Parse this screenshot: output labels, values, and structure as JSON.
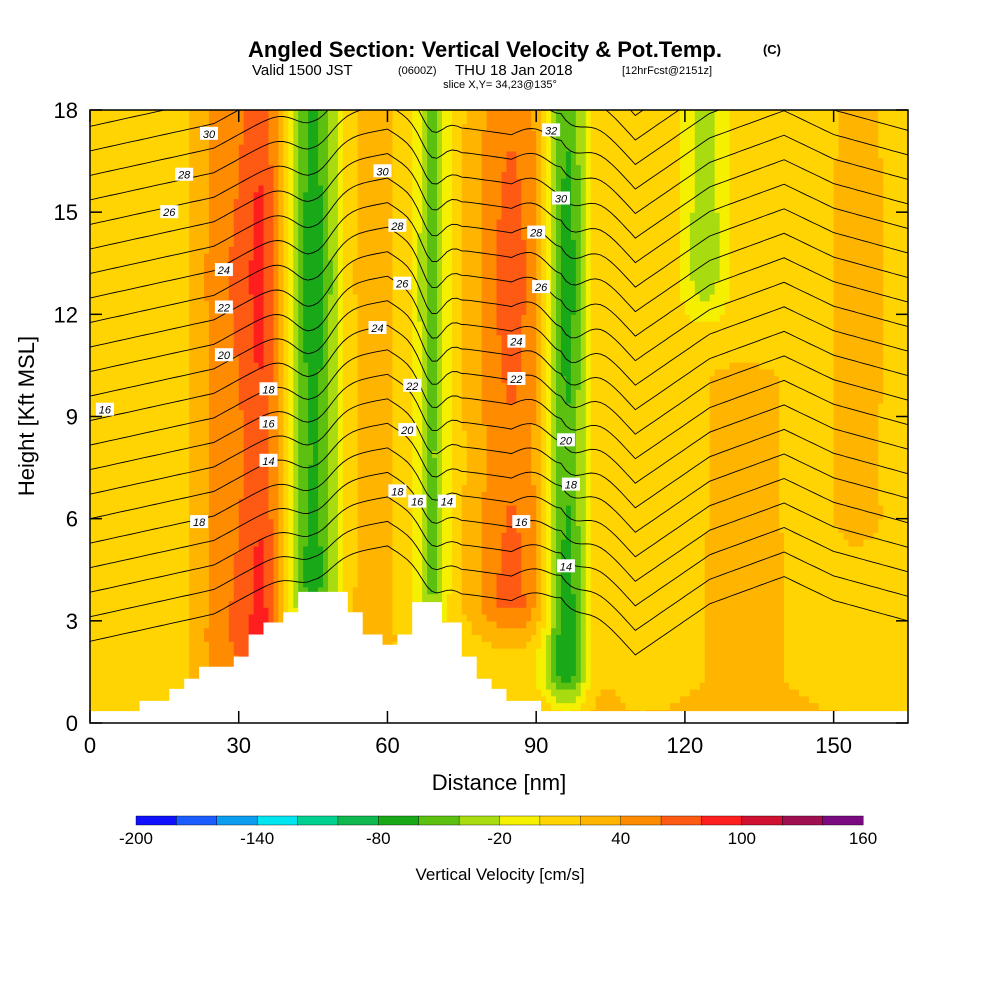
{
  "title": {
    "main": "Angled Section: Vertical Velocity & Pot.Temp.",
    "unit_tag": "(C)",
    "valid_prefix": "Valid 1500 JST",
    "valid_zulu": "(0600Z)",
    "valid_date": "THU 18 Jan 2018",
    "forecast": "[12hrFcst@2151z]",
    "slice": "slice X,Y= 34,23@135°"
  },
  "chart_data": {
    "type": "heatmap",
    "xlabel": "Distance [nm]",
    "ylabel": "Height [Kft MSL]",
    "xlim": [
      0,
      165
    ],
    "ylim": [
      0,
      18
    ],
    "x_ticks": [
      "0",
      "30",
      "60",
      "90",
      "120",
      "150"
    ],
    "y_ticks": [
      "0",
      "3",
      "6",
      "9",
      "12",
      "15",
      "18"
    ],
    "colorbar": {
      "label": "Vertical Velocity [cm/s]",
      "tick_labels": [
        "-200",
        "-140",
        "-80",
        "-20",
        "40",
        "100",
        "160"
      ],
      "levels": [
        -200,
        -180,
        -160,
        -140,
        -120,
        -100,
        -80,
        -60,
        -40,
        -20,
        0,
        20,
        40,
        60,
        80,
        100,
        120,
        140,
        160
      ],
      "colors": [
        "#1010ff",
        "#1a5cff",
        "#0a9df0",
        "#00e5f0",
        "#00d090",
        "#10b850",
        "#18a818",
        "#5cc010",
        "#a8dc10",
        "#f5f000",
        "#ffd400",
        "#ffb400",
        "#ff8c00",
        "#ff5a14",
        "#ff1e1e",
        "#d01030",
        "#a01050",
        "#7a0a80"
      ]
    },
    "velocity_columns": [
      {
        "x": 12,
        "peak": -5,
        "width": 6,
        "base": 1.0,
        "top": 9
      },
      {
        "x": 28,
        "peak": 45,
        "width": 7,
        "base": 1.0,
        "top": 18
      },
      {
        "x": 35,
        "peak": 55,
        "width": 4,
        "base": 2.5,
        "top": 18
      },
      {
        "x": 45,
        "peak": -75,
        "width": 5,
        "base": 4.0,
        "top": 18
      },
      {
        "x": 57,
        "peak": 25,
        "width": 5,
        "base": 2.0,
        "top": 18
      },
      {
        "x": 69,
        "peak": -55,
        "width": 3,
        "base": 4.0,
        "top": 18
      },
      {
        "x": 85,
        "peak": 55,
        "width": 8,
        "base": 3.5,
        "top": 18
      },
      {
        "x": 96,
        "peak": -80,
        "width": 4,
        "base": 1.5,
        "top": 18
      },
      {
        "x": 104,
        "peak": 10,
        "width": 4,
        "base": 0.5,
        "top": 18
      },
      {
        "x": 124,
        "peak": -40,
        "width": 4,
        "base": 13,
        "top": 18
      },
      {
        "x": 132,
        "peak": 18,
        "width": 12,
        "base": 0.5,
        "top": 10
      },
      {
        "x": 155,
        "peak": 22,
        "width": 6,
        "base": 6,
        "top": 18
      }
    ],
    "terrain": [
      {
        "x": 0,
        "h": 0.35
      },
      {
        "x": 10,
        "h": 0.35
      },
      {
        "x": 10,
        "h": 0.65
      },
      {
        "x": 16,
        "h": 0.65
      },
      {
        "x": 16,
        "h": 1.0
      },
      {
        "x": 19,
        "h": 1.0
      },
      {
        "x": 19,
        "h": 1.3
      },
      {
        "x": 22,
        "h": 1.3
      },
      {
        "x": 22,
        "h": 1.65
      },
      {
        "x": 29,
        "h": 1.65
      },
      {
        "x": 29,
        "h": 1.95
      },
      {
        "x": 32,
        "h": 1.95
      },
      {
        "x": 32,
        "h": 2.6
      },
      {
        "x": 35,
        "h": 2.6
      },
      {
        "x": 35,
        "h": 2.95
      },
      {
        "x": 39,
        "h": 2.95
      },
      {
        "x": 39,
        "h": 3.25
      },
      {
        "x": 42,
        "h": 3.25
      },
      {
        "x": 42,
        "h": 3.85
      },
      {
        "x": 52,
        "h": 3.85
      },
      {
        "x": 52,
        "h": 3.25
      },
      {
        "x": 55,
        "h": 3.25
      },
      {
        "x": 55,
        "h": 2.6
      },
      {
        "x": 59,
        "h": 2.6
      },
      {
        "x": 59,
        "h": 2.3
      },
      {
        "x": 62,
        "h": 2.3
      },
      {
        "x": 62,
        "h": 2.6
      },
      {
        "x": 65,
        "h": 2.6
      },
      {
        "x": 65,
        "h": 3.55
      },
      {
        "x": 71,
        "h": 3.55
      },
      {
        "x": 71,
        "h": 2.95
      },
      {
        "x": 75,
        "h": 2.95
      },
      {
        "x": 75,
        "h": 1.95
      },
      {
        "x": 78,
        "h": 1.95
      },
      {
        "x": 78,
        "h": 1.3
      },
      {
        "x": 81,
        "h": 1.3
      },
      {
        "x": 81,
        "h": 1.0
      },
      {
        "x": 84,
        "h": 1.0
      },
      {
        "x": 84,
        "h": 0.65
      },
      {
        "x": 91,
        "h": 0.65
      },
      {
        "x": 91,
        "h": 0.35
      },
      {
        "x": 165,
        "h": 0.35
      }
    ],
    "theta_contours": {
      "levels": [
        11,
        12,
        13,
        14,
        15,
        16,
        17,
        18,
        19,
        20,
        21,
        22,
        23,
        24,
        25,
        26,
        27,
        28,
        29,
        30,
        31,
        32,
        33
      ],
      "base_height": [
        [
          0,
          2.4
        ],
        [
          25,
          3.2
        ],
        [
          45,
          4.8
        ],
        [
          60,
          5.2
        ],
        [
          75,
          3.8
        ],
        [
          85,
          3.6
        ],
        [
          95,
          4.4
        ],
        [
          110,
          2.0
        ],
        [
          125,
          3.5
        ],
        [
          140,
          4.3
        ],
        [
          150,
          3.6
        ],
        [
          165,
          3.0
        ]
      ],
      "height_per_degree": 0.72,
      "wave_dips": [
        {
          "x": 45,
          "depth": 1.2,
          "width": 5
        },
        {
          "x": 69,
          "depth": 1.0,
          "width": 3
        },
        {
          "x": 96,
          "depth": 1.5,
          "width": 5
        }
      ]
    },
    "contour_labels": [
      {
        "text": "30",
        "x": 24,
        "y": 17.3
      },
      {
        "text": "28",
        "x": 19,
        "y": 16.1
      },
      {
        "text": "26",
        "x": 16,
        "y": 15.0
      },
      {
        "text": "24",
        "x": 27,
        "y": 13.3
      },
      {
        "text": "22",
        "x": 27,
        "y": 12.2
      },
      {
        "text": "20",
        "x": 27,
        "y": 10.8
      },
      {
        "text": "18",
        "x": 22,
        "y": 5.9
      },
      {
        "text": "16",
        "x": 3,
        "y": 9.2
      },
      {
        "text": "18",
        "x": 36,
        "y": 9.8
      },
      {
        "text": "16",
        "x": 36,
        "y": 8.8
      },
      {
        "text": "14",
        "x": 36,
        "y": 7.7
      },
      {
        "text": "30",
        "x": 59,
        "y": 16.2
      },
      {
        "text": "28",
        "x": 62,
        "y": 14.6
      },
      {
        "text": "26",
        "x": 63,
        "y": 12.9
      },
      {
        "text": "24",
        "x": 58,
        "y": 11.6
      },
      {
        "text": "22",
        "x": 65,
        "y": 9.9
      },
      {
        "text": "20",
        "x": 64,
        "y": 8.6
      },
      {
        "text": "18",
        "x": 62,
        "y": 6.8
      },
      {
        "text": "16",
        "x": 66,
        "y": 6.5
      },
      {
        "text": "14",
        "x": 72,
        "y": 6.5
      },
      {
        "text": "32",
        "x": 93,
        "y": 17.4
      },
      {
        "text": "30",
        "x": 95,
        "y": 15.4
      },
      {
        "text": "28",
        "x": 90,
        "y": 14.4
      },
      {
        "text": "26",
        "x": 91,
        "y": 12.8
      },
      {
        "text": "24",
        "x": 86,
        "y": 11.2
      },
      {
        "text": "22",
        "x": 86,
        "y": 10.1
      },
      {
        "text": "20",
        "x": 96,
        "y": 8.3
      },
      {
        "text": "18",
        "x": 97,
        "y": 7.0
      },
      {
        "text": "16",
        "x": 87,
        "y": 5.9
      },
      {
        "text": "14",
        "x": 96,
        "y": 4.6
      }
    ]
  }
}
